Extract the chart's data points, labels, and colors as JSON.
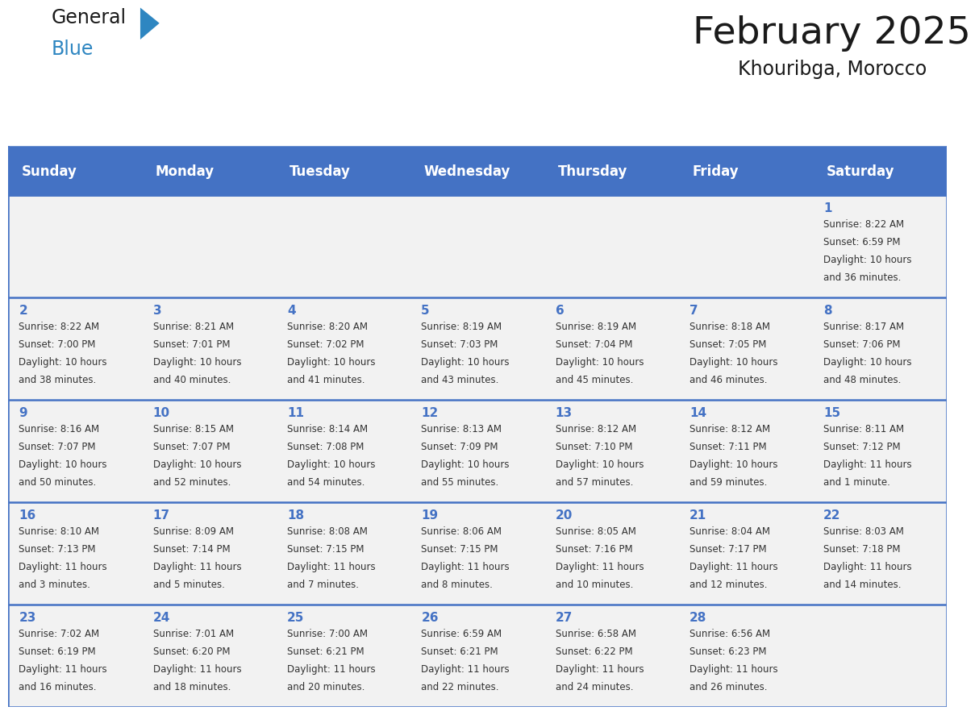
{
  "title": "February 2025",
  "subtitle": "Khouribga, Morocco",
  "header_bg": "#4472C4",
  "header_text": "#FFFFFF",
  "day_names": [
    "Sunday",
    "Monday",
    "Tuesday",
    "Wednesday",
    "Thursday",
    "Friday",
    "Saturday"
  ],
  "row_bg_odd": "#F2F2F2",
  "row_bg_even": "#FFFFFF",
  "cell_border": "#4472C4",
  "day_num_color": "#4472C4",
  "info_color": "#333333",
  "days": [
    {
      "day": 1,
      "col": 6,
      "row": 0,
      "sunrise": "8:22 AM",
      "sunset": "6:59 PM",
      "daylight": "10 hours and 36 minutes."
    },
    {
      "day": 2,
      "col": 0,
      "row": 1,
      "sunrise": "8:22 AM",
      "sunset": "7:00 PM",
      "daylight": "10 hours and 38 minutes."
    },
    {
      "day": 3,
      "col": 1,
      "row": 1,
      "sunrise": "8:21 AM",
      "sunset": "7:01 PM",
      "daylight": "10 hours and 40 minutes."
    },
    {
      "day": 4,
      "col": 2,
      "row": 1,
      "sunrise": "8:20 AM",
      "sunset": "7:02 PM",
      "daylight": "10 hours and 41 minutes."
    },
    {
      "day": 5,
      "col": 3,
      "row": 1,
      "sunrise": "8:19 AM",
      "sunset": "7:03 PM",
      "daylight": "10 hours and 43 minutes."
    },
    {
      "day": 6,
      "col": 4,
      "row": 1,
      "sunrise": "8:19 AM",
      "sunset": "7:04 PM",
      "daylight": "10 hours and 45 minutes."
    },
    {
      "day": 7,
      "col": 5,
      "row": 1,
      "sunrise": "8:18 AM",
      "sunset": "7:05 PM",
      "daylight": "10 hours and 46 minutes."
    },
    {
      "day": 8,
      "col": 6,
      "row": 1,
      "sunrise": "8:17 AM",
      "sunset": "7:06 PM",
      "daylight": "10 hours and 48 minutes."
    },
    {
      "day": 9,
      "col": 0,
      "row": 2,
      "sunrise": "8:16 AM",
      "sunset": "7:07 PM",
      "daylight": "10 hours and 50 minutes."
    },
    {
      "day": 10,
      "col": 1,
      "row": 2,
      "sunrise": "8:15 AM",
      "sunset": "7:07 PM",
      "daylight": "10 hours and 52 minutes."
    },
    {
      "day": 11,
      "col": 2,
      "row": 2,
      "sunrise": "8:14 AM",
      "sunset": "7:08 PM",
      "daylight": "10 hours and 54 minutes."
    },
    {
      "day": 12,
      "col": 3,
      "row": 2,
      "sunrise": "8:13 AM",
      "sunset": "7:09 PM",
      "daylight": "10 hours and 55 minutes."
    },
    {
      "day": 13,
      "col": 4,
      "row": 2,
      "sunrise": "8:12 AM",
      "sunset": "7:10 PM",
      "daylight": "10 hours and 57 minutes."
    },
    {
      "day": 14,
      "col": 5,
      "row": 2,
      "sunrise": "8:12 AM",
      "sunset": "7:11 PM",
      "daylight": "10 hours and 59 minutes."
    },
    {
      "day": 15,
      "col": 6,
      "row": 2,
      "sunrise": "8:11 AM",
      "sunset": "7:12 PM",
      "daylight": "11 hours and 1 minute."
    },
    {
      "day": 16,
      "col": 0,
      "row": 3,
      "sunrise": "8:10 AM",
      "sunset": "7:13 PM",
      "daylight": "11 hours and 3 minutes."
    },
    {
      "day": 17,
      "col": 1,
      "row": 3,
      "sunrise": "8:09 AM",
      "sunset": "7:14 PM",
      "daylight": "11 hours and 5 minutes."
    },
    {
      "day": 18,
      "col": 2,
      "row": 3,
      "sunrise": "8:08 AM",
      "sunset": "7:15 PM",
      "daylight": "11 hours and 7 minutes."
    },
    {
      "day": 19,
      "col": 3,
      "row": 3,
      "sunrise": "8:06 AM",
      "sunset": "7:15 PM",
      "daylight": "11 hours and 8 minutes."
    },
    {
      "day": 20,
      "col": 4,
      "row": 3,
      "sunrise": "8:05 AM",
      "sunset": "7:16 PM",
      "daylight": "11 hours and 10 minutes."
    },
    {
      "day": 21,
      "col": 5,
      "row": 3,
      "sunrise": "8:04 AM",
      "sunset": "7:17 PM",
      "daylight": "11 hours and 12 minutes."
    },
    {
      "day": 22,
      "col": 6,
      "row": 3,
      "sunrise": "8:03 AM",
      "sunset": "7:18 PM",
      "daylight": "11 hours and 14 minutes."
    },
    {
      "day": 23,
      "col": 0,
      "row": 4,
      "sunrise": "7:02 AM",
      "sunset": "6:19 PM",
      "daylight": "11 hours and 16 minutes."
    },
    {
      "day": 24,
      "col": 1,
      "row": 4,
      "sunrise": "7:01 AM",
      "sunset": "6:20 PM",
      "daylight": "11 hours and 18 minutes."
    },
    {
      "day": 25,
      "col": 2,
      "row": 4,
      "sunrise": "7:00 AM",
      "sunset": "6:21 PM",
      "daylight": "11 hours and 20 minutes."
    },
    {
      "day": 26,
      "col": 3,
      "row": 4,
      "sunrise": "6:59 AM",
      "sunset": "6:21 PM",
      "daylight": "11 hours and 22 minutes."
    },
    {
      "day": 27,
      "col": 4,
      "row": 4,
      "sunrise": "6:58 AM",
      "sunset": "6:22 PM",
      "daylight": "11 hours and 24 minutes."
    },
    {
      "day": 28,
      "col": 5,
      "row": 4,
      "sunrise": "6:56 AM",
      "sunset": "6:23 PM",
      "daylight": "11 hours and 26 minutes."
    }
  ]
}
